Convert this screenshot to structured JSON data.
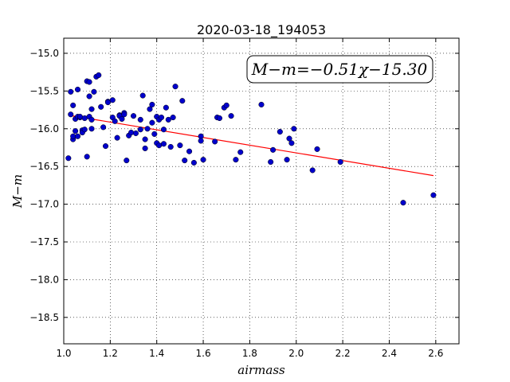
{
  "chart_data": {
    "type": "scatter",
    "title": "2020-03-18_194053",
    "xlabel": "airmass",
    "ylabel": "M−m",
    "xlim": [
      1.0,
      2.7
    ],
    "ylim": [
      -18.85,
      -14.8
    ],
    "y_inverted": true,
    "grid": true,
    "x_ticks": [
      "1.0",
      "1.2",
      "1.4",
      "1.6",
      "1.8",
      "2.0",
      "2.2",
      "2.4",
      "2.6"
    ],
    "y_ticks": [
      "−15.0",
      "−15.5",
      "−16.0",
      "−16.5",
      "−17.0",
      "−17.5",
      "−18.0",
      "−18.5"
    ],
    "annotation": "M−m=−0.51χ−15.30",
    "fit": {
      "slope": -0.51,
      "intercept": -15.3,
      "x_range": [
        1.02,
        2.59
      ],
      "color": "#ff0000"
    },
    "point_color": "#0000cc",
    "points": [
      [
        1.02,
        -16.39
      ],
      [
        1.03,
        -15.51
      ],
      [
        1.03,
        -15.81
      ],
      [
        1.04,
        -15.69
      ],
      [
        1.04,
        -16.14
      ],
      [
        1.04,
        -16.1
      ],
      [
        1.05,
        -15.87
      ],
      [
        1.05,
        -16.03
      ],
      [
        1.06,
        -15.48
      ],
      [
        1.06,
        -15.84
      ],
      [
        1.06,
        -16.1
      ],
      [
        1.07,
        -15.85
      ],
      [
        1.07,
        -15.84
      ],
      [
        1.08,
        -16.02
      ],
      [
        1.08,
        -16.05
      ],
      [
        1.09,
        -16.01
      ],
      [
        1.09,
        -15.86
      ],
      [
        1.1,
        -15.37
      ],
      [
        1.1,
        -16.37
      ],
      [
        1.11,
        -15.38
      ],
      [
        1.11,
        -15.57
      ],
      [
        1.11,
        -15.84
      ],
      [
        1.12,
        -16.0
      ],
      [
        1.12,
        -15.88
      ],
      [
        1.12,
        -15.74
      ],
      [
        1.13,
        -15.51
      ],
      [
        1.14,
        -15.31
      ],
      [
        1.15,
        -15.29
      ],
      [
        1.16,
        -15.71
      ],
      [
        1.17,
        -15.98
      ],
      [
        1.18,
        -16.23
      ],
      [
        1.19,
        -15.64
      ],
      [
        1.19,
        -15.65
      ],
      [
        1.21,
        -15.62
      ],
      [
        1.21,
        -15.85
      ],
      [
        1.22,
        -15.9
      ],
      [
        1.23,
        -16.12
      ],
      [
        1.24,
        -15.82
      ],
      [
        1.24,
        -15.83
      ],
      [
        1.25,
        -15.87
      ],
      [
        1.26,
        -15.79
      ],
      [
        1.26,
        -15.81
      ],
      [
        1.27,
        -16.42
      ],
      [
        1.28,
        -16.09
      ],
      [
        1.29,
        -16.05
      ],
      [
        1.3,
        -15.83
      ],
      [
        1.31,
        -16.06
      ],
      [
        1.33,
        -15.88
      ],
      [
        1.33,
        -16.01
      ],
      [
        1.34,
        -15.56
      ],
      [
        1.35,
        -16.14
      ],
      [
        1.35,
        -16.26
      ],
      [
        1.36,
        -16.0
      ],
      [
        1.37,
        -15.74
      ],
      [
        1.38,
        -15.68
      ],
      [
        1.38,
        -15.92
      ],
      [
        1.39,
        -16.07
      ],
      [
        1.4,
        -15.84
      ],
      [
        1.4,
        -16.19
      ],
      [
        1.41,
        -15.88
      ],
      [
        1.41,
        -16.22
      ],
      [
        1.42,
        -15.85
      ],
      [
        1.43,
        -16.01
      ],
      [
        1.43,
        -16.2
      ],
      [
        1.44,
        -15.72
      ],
      [
        1.45,
        -15.88
      ],
      [
        1.46,
        -16.24
      ],
      [
        1.47,
        -15.85
      ],
      [
        1.48,
        -15.44
      ],
      [
        1.5,
        -16.22
      ],
      [
        1.51,
        -15.63
      ],
      [
        1.52,
        -16.42
      ],
      [
        1.54,
        -16.3
      ],
      [
        1.56,
        -16.45
      ],
      [
        1.59,
        -16.1
      ],
      [
        1.59,
        -16.16
      ],
      [
        1.6,
        -16.41
      ],
      [
        1.65,
        -16.17
      ],
      [
        1.66,
        -15.85
      ],
      [
        1.67,
        -15.86
      ],
      [
        1.69,
        -15.72
      ],
      [
        1.7,
        -15.69
      ],
      [
        1.72,
        -15.83
      ],
      [
        1.74,
        -16.41
      ],
      [
        1.76,
        -16.31
      ],
      [
        1.85,
        -15.68
      ],
      [
        1.89,
        -16.44
      ],
      [
        1.9,
        -16.28
      ],
      [
        1.93,
        -16.04
      ],
      [
        1.96,
        -16.41
      ],
      [
        1.97,
        -16.13
      ],
      [
        1.98,
        -16.19
      ],
      [
        1.99,
        -16.0
      ],
      [
        2.07,
        -16.55
      ],
      [
        2.09,
        -16.27
      ],
      [
        2.19,
        -16.44
      ],
      [
        2.46,
        -16.98
      ],
      [
        2.59,
        -16.88
      ]
    ]
  }
}
